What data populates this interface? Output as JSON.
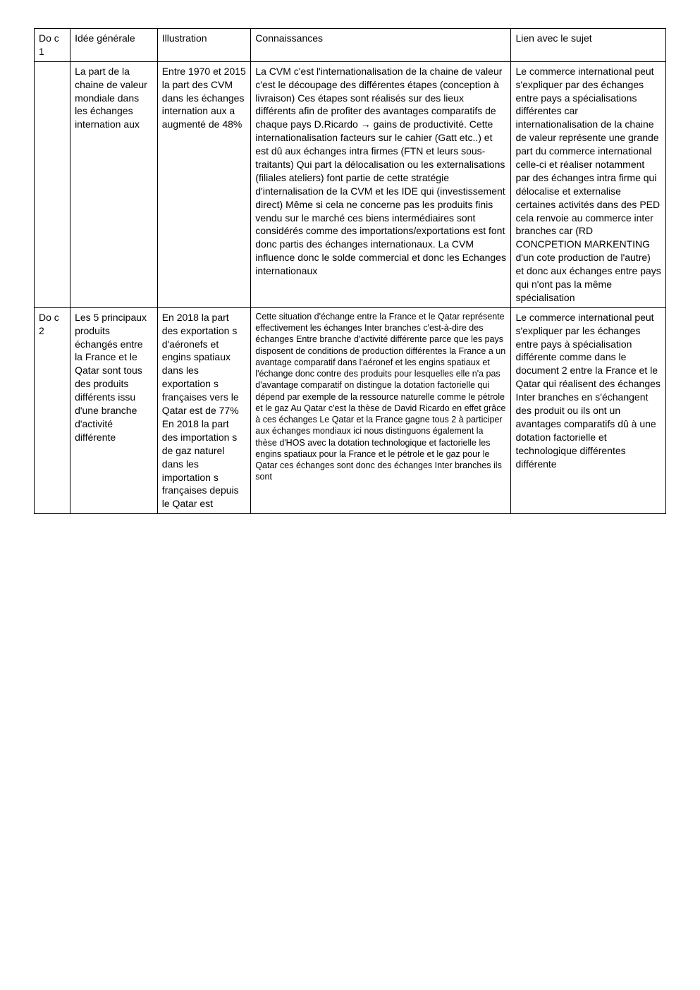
{
  "table": {
    "columns": [
      {
        "label": "Do c 1"
      },
      {
        "label": "Idée générale"
      },
      {
        "label": "Illustration"
      },
      {
        "label": "Connaissances"
      },
      {
        "label": "Lien avec le sujet"
      }
    ],
    "rows": [
      {
        "doc": "",
        "idee": "La part de la chaine de valeur mondiale dans les échanges internation aux",
        "illustration": "Entre 1970 et 2015 la part des CVM dans les échanges internation aux a augmenté de 48%",
        "connaissances": "La CVM c'est l'internationalisation de la chaine de valeur c'est le découpage des différentes étapes (conception à livraison) Ces étapes sont réalisés sur des lieux différents afin de profiter des avantages comparatifs de chaque pays D.Ricardo → gains de productivité. Cette internationalisation facteurs sur le cahier (Gatt etc..) et est dû aux échanges intra firmes (FTN et leurs sous-traitants)\nQui part la délocalisation ou les externalisations (filiales ateliers) font partie de cette stratégie d'internalisation de la CVM et les IDE qui (investissement direct) Même si cela ne concerne pas les produits finis vendu sur le marché ces biens intermédiaires sont considérés comme des importations/exportations est font donc partis des échanges internationaux. La CVM influence donc le solde commercial et donc les Echanges internationaux",
        "lien": "Le commerce international peut s'expliquer par des échanges entre pays a spécialisations différentes car internationalisation de la chaine de valeur représente une grande part du commerce international celle-ci et réaliser notamment par des échanges intra firme qui délocalise et externalise certaines activités dans des PED cela renvoie au commerce inter branches car (RD CONCPETION MARKENTING d'un cote production de l'autre) et donc aux échanges entre pays qui n'ont pas la même spécialisation",
        "conn_small": false
      },
      {
        "doc": "Do c 2",
        "idee": "Les 5 principaux produits échangés entre la France et le Qatar sont tous des produits différents issu d'une branche d'activité différente",
        "illustration": "En 2018 la part des exportation s d'aéronefs et engins spatiaux dans les exportation s françaises vers le Qatar est de 77%\nEn 2018 la part des importation s de gaz naturel dans les importation s françaises depuis le Qatar est",
        "connaissances": "Cette situation d'échange entre la France et le Qatar représente effectivement les échanges Inter branches c'est-à-dire des échanges Entre branche d'activité différente parce que les pays disposent de conditions de production différentes la France a un avantage comparatif dans l'aéronef et  les engins spatiaux et l'échange donc contre des produits pour lesquelles elle n'a pas d'avantage comparatif on distingue la dotation factorielle qui dépend par exemple de la ressource naturelle comme le pétrole et le gaz Au Qatar c'est la thèse de David Ricardo en effet grâce à ces échanges Le Qatar et la France  gagne tous 2 à participer aux échanges mondiaux ici nous distinguons également la thèse d'HOS avec la dotation technologique et factorielle les engins spatiaux pour la France et le pétrole et le gaz pour le Qatar ces échanges sont donc des échanges Inter branches ils sont",
        "lien": "Le commerce international peut s'expliquer par les échanges entre pays à spécialisation différente  comme dans le document 2 entre la France et le Qatar qui réalisent des échanges Inter branches en s'échangent des produit ou ils ont un avantages comparatifs dû à une dotation factorielle et technologique différentes différente",
        "conn_small": true
      }
    ]
  }
}
